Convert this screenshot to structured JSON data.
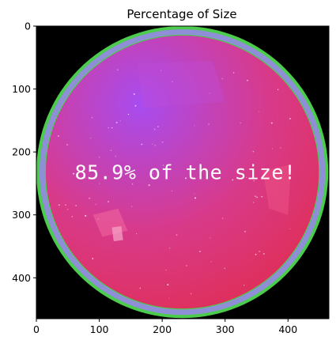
{
  "chart_data": {
    "type": "image",
    "title": "Percentage of Size",
    "annotation": "85.9% of the size!",
    "xlim": [
      0,
      465
    ],
    "ylim": [
      465,
      0
    ],
    "x_ticks": [
      0,
      100,
      200,
      300,
      400
    ],
    "y_ticks": [
      0,
      100,
      200,
      300,
      400
    ],
    "x_tick_labels": [
      "0",
      "100",
      "200",
      "300",
      "400"
    ],
    "y_tick_labels": [
      "0",
      "100",
      "200",
      "300",
      "400"
    ],
    "fisheye_circle": {
      "center": [
        232,
        232
      ],
      "outer_radius": 232,
      "ring_inner_radius": 217,
      "green_border_radius": 227
    },
    "percentage": 85.9,
    "colors": {
      "background": "#000000",
      "ring": "#8f8fd8",
      "ring_border": "#4ccc4c",
      "sky_top_left": "#a84cf0",
      "sky_center": "#d83a8a",
      "sky_bottom": "#e02e55"
    }
  }
}
